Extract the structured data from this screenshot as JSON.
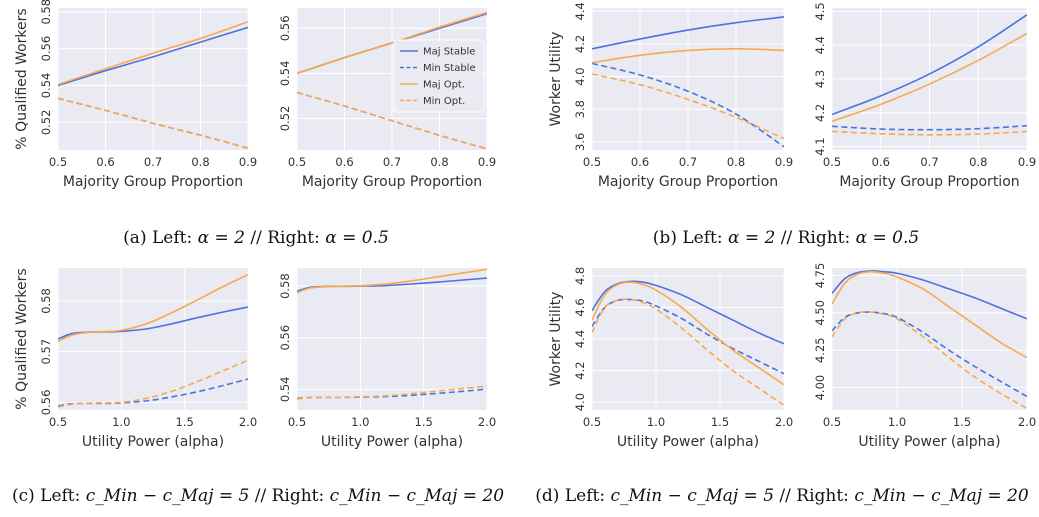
{
  "figure": {
    "colors": {
      "maj": "#4C72E0",
      "min": "#4C72E0",
      "opt": "#F8A94E",
      "panel_bg": "#EAEAF2",
      "grid": "#FFFFFF"
    },
    "legend": {
      "entries": [
        {
          "label": "Maj Stable",
          "color": "#4C72E0",
          "dash": false
        },
        {
          "label": "Min Stable",
          "color": "#4C72E0",
          "dash": true
        },
        {
          "label": "Maj Opt.",
          "color": "#F8A94E",
          "dash": false
        },
        {
          "label": "Min Opt.",
          "color": "#F8A94E",
          "dash": true
        }
      ]
    },
    "captions": {
      "a": {
        "prefix": "(a) Left: ",
        "m1": "α = 2",
        "mid": " // Right: ",
        "m2": "α = 0.5"
      },
      "b": {
        "prefix": "(b) Left: ",
        "m1": "α = 2",
        "mid": " // Right: ",
        "m2": "α = 0.5"
      },
      "c": {
        "prefix": "(c) Left: ",
        "m1": "c_Min − c_Maj = 5",
        "mid": " // Right: ",
        "m2": "c_Min − c_Maj = 20"
      },
      "d": {
        "prefix": "(d) Left: ",
        "m1": "c_Min − c_Maj = 5",
        "mid": " // Right: ",
        "m2": "c_Min − c_Maj = 20"
      }
    }
  },
  "chart_data": [
    {
      "id": "a-left",
      "type": "line",
      "xlabel": "Majority Group Proportion",
      "ylabel": "% Qualified Workers",
      "xlim": [
        0.5,
        0.9
      ],
      "ylim": [
        0.505,
        0.582
      ],
      "xticks": [
        "0.5",
        "0.6",
        "0.7",
        "0.8",
        "0.9"
      ],
      "xtick_values": [
        0.5,
        0.6,
        0.7,
        0.8,
        0.9
      ],
      "yticks": [
        "0.52",
        "0.54",
        "0.56",
        "0.58"
      ],
      "ytick_values": [
        0.52,
        0.54,
        0.56,
        0.58
      ],
      "x": [
        0.5,
        0.6,
        0.7,
        0.8,
        0.9
      ],
      "series": [
        {
          "name": "Maj Stable",
          "style": "maj-stable",
          "values": [
            0.54,
            0.548,
            0.5555,
            0.5635,
            0.5715
          ]
        },
        {
          "name": "Min Stable",
          "style": "min-stable",
          "values": [
            0.533,
            0.5265,
            0.5195,
            0.513,
            0.506
          ]
        },
        {
          "name": "Maj Opt.",
          "style": "maj-opt",
          "values": [
            0.5405,
            0.549,
            0.5575,
            0.5655,
            0.5745
          ]
        },
        {
          "name": "Min Opt.",
          "style": "min-opt",
          "values": [
            0.533,
            0.5265,
            0.5195,
            0.513,
            0.506
          ]
        }
      ]
    },
    {
      "id": "a-right",
      "type": "line",
      "xlabel": "Majority Group Proportion",
      "ylabel": "",
      "xlim": [
        0.5,
        0.9
      ],
      "ylim": [
        0.506,
        0.569
      ],
      "xticks": [
        "0.5",
        "0.6",
        "0.7",
        "0.8",
        "0.9"
      ],
      "xtick_values": [
        0.5,
        0.6,
        0.7,
        0.8,
        0.9
      ],
      "yticks": [
        "0.52",
        "0.54",
        "0.56"
      ],
      "ytick_values": [
        0.52,
        0.54,
        0.56
      ],
      "legend": true,
      "x": [
        0.5,
        0.6,
        0.7,
        0.8,
        0.9
      ],
      "series": [
        {
          "name": "Maj Stable",
          "style": "maj-stable",
          "values": [
            0.54,
            0.547,
            0.5535,
            0.56,
            0.5665
          ]
        },
        {
          "name": "Min Stable",
          "style": "min-stable",
          "values": [
            0.5315,
            0.5255,
            0.519,
            0.5125,
            0.5065
          ]
        },
        {
          "name": "Maj Opt.",
          "style": "maj-opt",
          "values": [
            0.54,
            0.547,
            0.5535,
            0.5605,
            0.567
          ]
        },
        {
          "name": "Min Opt.",
          "style": "min-opt",
          "values": [
            0.5315,
            0.5255,
            0.519,
            0.5125,
            0.5065
          ]
        }
      ]
    },
    {
      "id": "b-left",
      "type": "line",
      "xlabel": "Majority Group Proportion",
      "ylabel": "Worker Utility",
      "xlim": [
        0.5,
        0.9
      ],
      "ylim": [
        3.55,
        4.42
      ],
      "xticks": [
        "0.5",
        "0.6",
        "0.7",
        "0.8",
        "0.9"
      ],
      "xtick_values": [
        0.5,
        0.6,
        0.7,
        0.8,
        0.9
      ],
      "yticks": [
        "3.6",
        "3.8",
        "4.0",
        "4.2",
        "4.4"
      ],
      "ytick_values": [
        3.6,
        3.8,
        4.0,
        4.2,
        4.4
      ],
      "x": [
        0.5,
        0.6,
        0.7,
        0.8,
        0.9
      ],
      "series": [
        {
          "name": "Maj Stable",
          "style": "maj-stable",
          "values": [
            4.17,
            4.23,
            4.285,
            4.33,
            4.365
          ]
        },
        {
          "name": "Min Stable",
          "style": "min-stable",
          "values": [
            4.08,
            4.01,
            3.91,
            3.77,
            3.57
          ]
        },
        {
          "name": "Maj Opt.",
          "style": "maj-opt",
          "values": [
            4.085,
            4.13,
            4.16,
            4.17,
            4.16
          ]
        },
        {
          "name": "Min Opt.",
          "style": "min-opt",
          "values": [
            4.015,
            3.95,
            3.86,
            3.75,
            3.62
          ]
        }
      ]
    },
    {
      "id": "b-right",
      "type": "line",
      "xlabel": "Majority Group Proportion",
      "ylabel": "",
      "xlim": [
        0.5,
        0.9
      ],
      "ylim": [
        4.09,
        4.51
      ],
      "xticks": [
        "0.5",
        "0.6",
        "0.7",
        "0.8",
        "0.9"
      ],
      "xtick_values": [
        0.5,
        0.6,
        0.7,
        0.8,
        0.9
      ],
      "yticks": [
        "4.1",
        "4.2",
        "4.3",
        "4.4",
        "4.5"
      ],
      "ytick_values": [
        4.1,
        4.2,
        4.3,
        4.4,
        4.5
      ],
      "x": [
        0.5,
        0.6,
        0.7,
        0.8,
        0.9
      ],
      "series": [
        {
          "name": "Maj Stable",
          "style": "maj-stable",
          "values": [
            4.195,
            4.25,
            4.315,
            4.395,
            4.49
          ]
        },
        {
          "name": "Min Stable",
          "style": "min-stable",
          "values": [
            4.16,
            4.152,
            4.15,
            4.153,
            4.162
          ]
        },
        {
          "name": "Maj Opt.",
          "style": "maj-opt",
          "values": [
            4.175,
            4.225,
            4.285,
            4.355,
            4.435
          ]
        },
        {
          "name": "Min Opt.",
          "style": "min-opt",
          "values": [
            4.145,
            4.138,
            4.135,
            4.137,
            4.145
          ]
        }
      ]
    },
    {
      "id": "c-left",
      "type": "line",
      "xlabel": "Utility Power (alpha)",
      "ylabel": "% Qualified Workers",
      "xlim": [
        0.5,
        2.0
      ],
      "ylim": [
        0.5585,
        0.5865
      ],
      "xticks": [
        "0.5",
        "1.0",
        "1.5",
        "2.0"
      ],
      "xtick_values": [
        0.5,
        1.0,
        1.5,
        2.0
      ],
      "yticks": [
        "0.56",
        "0.57",
        "0.58"
      ],
      "ytick_values": [
        0.56,
        0.57,
        0.58
      ],
      "x": [
        0.5,
        0.6,
        0.7,
        0.8,
        0.9,
        1.0,
        1.2,
        1.4,
        1.6,
        1.8,
        2.0
      ],
      "series": [
        {
          "name": "Maj Stable",
          "style": "maj-stable",
          "values": [
            0.5725,
            0.5735,
            0.5738,
            0.5739,
            0.5739,
            0.574,
            0.5745,
            0.5755,
            0.5767,
            0.5778,
            0.5788
          ]
        },
        {
          "name": "Min Stable",
          "style": "min-stable",
          "values": [
            0.5593,
            0.5597,
            0.5598,
            0.5598,
            0.5598,
            0.5599,
            0.5603,
            0.5611,
            0.5621,
            0.5633,
            0.5646
          ]
        },
        {
          "name": "Maj Opt.",
          "style": "maj-opt",
          "values": [
            0.572,
            0.5732,
            0.5737,
            0.5739,
            0.574,
            0.5742,
            0.5755,
            0.5777,
            0.5802,
            0.5828,
            0.5852
          ]
        },
        {
          "name": "Min Opt.",
          "style": "min-opt",
          "values": [
            0.5591,
            0.5596,
            0.5598,
            0.5599,
            0.5599,
            0.56,
            0.5608,
            0.5622,
            0.5641,
            0.5662,
            0.5683
          ]
        }
      ]
    },
    {
      "id": "c-right",
      "type": "line",
      "xlabel": "Utility Power (alpha)",
      "ylabel": "",
      "xlim": [
        0.5,
        2.0
      ],
      "ylim": [
        0.532,
        0.587
      ],
      "xticks": [
        "0.5",
        "1.0",
        "1.5",
        "2.0"
      ],
      "xtick_values": [
        0.5,
        1.0,
        1.5,
        2.0
      ],
      "yticks": [
        "0.54",
        "0.56",
        "0.58"
      ],
      "ytick_values": [
        0.54,
        0.56,
        0.58
      ],
      "x": [
        0.5,
        0.6,
        0.7,
        0.8,
        0.9,
        1.0,
        1.2,
        1.4,
        1.6,
        1.8,
        2.0
      ],
      "series": [
        {
          "name": "Maj Stable",
          "style": "maj-stable",
          "values": [
            0.578,
            0.5795,
            0.5798,
            0.5799,
            0.5799,
            0.58,
            0.5802,
            0.5808,
            0.5815,
            0.5823,
            0.5831
          ]
        },
        {
          "name": "Min Stable",
          "style": "min-stable",
          "values": [
            0.5365,
            0.5368,
            0.5369,
            0.5369,
            0.5369,
            0.537,
            0.5372,
            0.5377,
            0.5384,
            0.5392,
            0.5401
          ]
        },
        {
          "name": "Maj Opt.",
          "style": "maj-opt",
          "values": [
            0.5775,
            0.5792,
            0.5797,
            0.5799,
            0.58,
            0.5801,
            0.5808,
            0.582,
            0.5835,
            0.585,
            0.5865
          ]
        },
        {
          "name": "Min Opt.",
          "style": "min-opt",
          "values": [
            0.5363,
            0.5367,
            0.5369,
            0.5369,
            0.537,
            0.5371,
            0.5375,
            0.5383,
            0.5393,
            0.5403,
            0.5412
          ]
        }
      ]
    },
    {
      "id": "d-left",
      "type": "line",
      "xlabel": "Utility Power (alpha)",
      "ylabel": "Worker Utility",
      "xlim": [
        0.5,
        2.0
      ],
      "ylim": [
        3.95,
        4.85
      ],
      "xticks": [
        "0.5",
        "1.0",
        "1.5",
        "2.0"
      ],
      "xtick_values": [
        0.5,
        1.0,
        1.5,
        2.0
      ],
      "yticks": [
        "4.0",
        "4.2",
        "4.4",
        "4.6",
        "4.8"
      ],
      "ytick_values": [
        4.0,
        4.2,
        4.4,
        4.6,
        4.8
      ],
      "x": [
        0.5,
        0.6,
        0.7,
        0.8,
        0.9,
        1.0,
        1.2,
        1.4,
        1.6,
        1.8,
        2.0
      ],
      "series": [
        {
          "name": "Maj Stable",
          "style": "maj-stable",
          "values": [
            4.58,
            4.7,
            4.75,
            4.765,
            4.76,
            4.74,
            4.68,
            4.6,
            4.52,
            4.44,
            4.37
          ]
        },
        {
          "name": "Min Stable",
          "style": "min-stable",
          "values": [
            4.48,
            4.6,
            4.645,
            4.65,
            4.64,
            4.61,
            4.53,
            4.43,
            4.34,
            4.26,
            4.18
          ]
        },
        {
          "name": "Maj Opt.",
          "style": "maj-opt",
          "values": [
            4.52,
            4.68,
            4.745,
            4.76,
            4.745,
            4.71,
            4.6,
            4.46,
            4.33,
            4.22,
            4.11
          ]
        },
        {
          "name": "Min Opt.",
          "style": "min-opt",
          "values": [
            4.44,
            4.6,
            4.645,
            4.65,
            4.63,
            4.59,
            4.47,
            4.33,
            4.2,
            4.09,
            3.98
          ]
        }
      ]
    },
    {
      "id": "d-right",
      "type": "line",
      "xlabel": "Utility Power (alpha)",
      "ylabel": "",
      "xlim": [
        0.5,
        2.0
      ],
      "ylim": [
        3.85,
        4.8
      ],
      "xticks": [
        "0.5",
        "1.0",
        "1.5",
        "2.0"
      ],
      "xtick_values": [
        0.5,
        1.0,
        1.5,
        2.0
      ],
      "yticks": [
        "4.00",
        "4.25",
        "4.50",
        "4.75"
      ],
      "ytick_values": [
        4.0,
        4.25,
        4.5,
        4.75
      ],
      "x": [
        0.5,
        0.6,
        0.7,
        0.8,
        0.9,
        1.0,
        1.2,
        1.4,
        1.6,
        1.8,
        2.0
      ],
      "series": [
        {
          "name": "Maj Stable",
          "style": "maj-stable",
          "values": [
            4.63,
            4.73,
            4.77,
            4.78,
            4.775,
            4.765,
            4.72,
            4.66,
            4.6,
            4.53,
            4.46
          ]
        },
        {
          "name": "Min Stable",
          "style": "min-stable",
          "values": [
            4.38,
            4.47,
            4.5,
            4.505,
            4.495,
            4.47,
            4.37,
            4.25,
            4.14,
            4.04,
            3.94
          ]
        },
        {
          "name": "Maj Opt.",
          "style": "maj-opt",
          "values": [
            4.56,
            4.7,
            4.76,
            4.775,
            4.765,
            4.74,
            4.66,
            4.54,
            4.42,
            4.3,
            4.2
          ]
        },
        {
          "name": "Min Opt.",
          "style": "min-opt",
          "values": [
            4.34,
            4.46,
            4.5,
            4.505,
            4.49,
            4.46,
            4.34,
            4.2,
            4.07,
            3.96,
            3.86
          ]
        }
      ]
    }
  ]
}
